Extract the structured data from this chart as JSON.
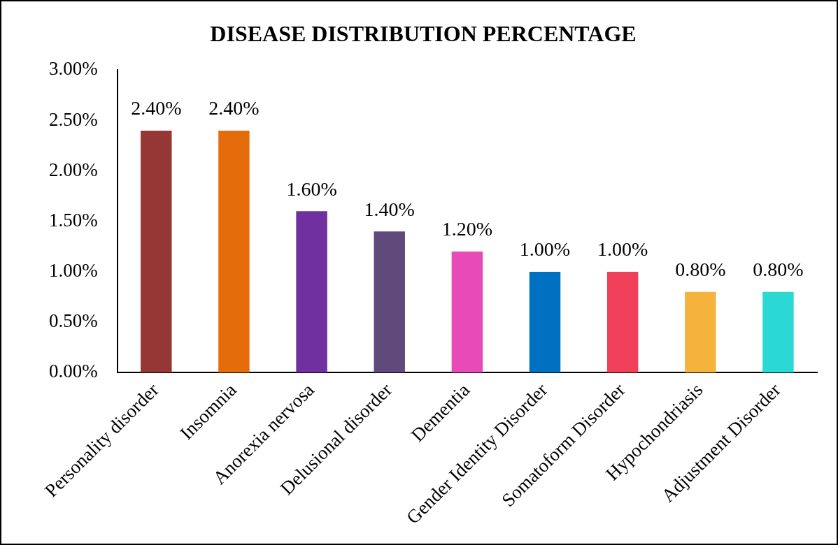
{
  "chart_data": {
    "type": "bar",
    "title": "DISEASE DISTRIBUTION PERCENTAGE",
    "categories": [
      "Personality disorder",
      "Insomnia",
      "Anorexia nervosa",
      "Delusional disorder",
      "Dementia",
      "Gender Identity Disorder",
      "Somatoform Disorder",
      "Hypochondriasis",
      "Adjustment Disorder"
    ],
    "values": [
      2.4,
      2.4,
      1.6,
      1.4,
      1.2,
      1.0,
      1.0,
      0.8,
      0.8
    ],
    "value_labels": [
      "2.40%",
      "2.40%",
      "1.60%",
      "1.40%",
      "1.20%",
      "1.00%",
      "1.00%",
      "0.80%",
      "0.80%"
    ],
    "colors": [
      "#953735",
      "#e46c0a",
      "#7030a0",
      "#604a7b",
      "#e84bb5",
      "#0070c0",
      "#f0405a",
      "#f4b33d",
      "#2ad8d4"
    ],
    "ylim": [
      0,
      3
    ],
    "yticks": [
      {
        "value": 0,
        "label": "0.00%"
      },
      {
        "value": 0.5,
        "label": "0.50%"
      },
      {
        "value": 1,
        "label": "1.00%"
      },
      {
        "value": 1.5,
        "label": "1.50%"
      },
      {
        "value": 2,
        "label": "2.00%"
      },
      {
        "value": 2.5,
        "label": "2.50%"
      },
      {
        "value": 3,
        "label": "3.00%"
      }
    ],
    "grid": false,
    "legend": false
  }
}
